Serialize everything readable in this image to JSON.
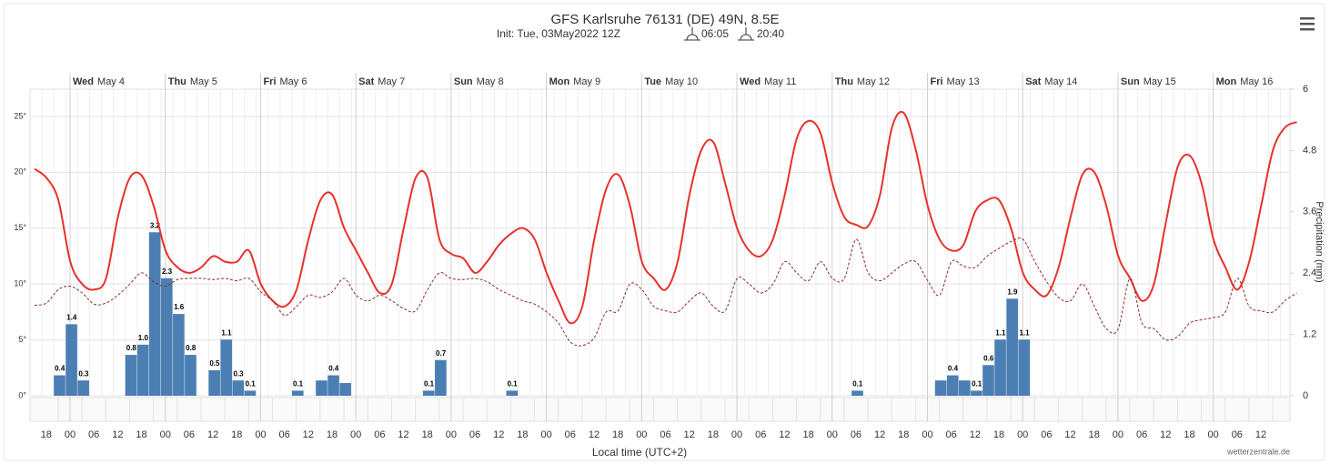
{
  "chart_data": {
    "type": "line",
    "title": "GFS Karlsruhe 76131 (DE) 49N, 8.5E",
    "subtitle": "Init: Tue, 03May2022 12Z",
    "sunrise": "06:05",
    "sunset": "20:40",
    "x_title": "Local time (UTC+2)",
    "credit": "wetterzentrale.de",
    "y2_label": "Precipitation (mm)",
    "grid": true,
    "ylim": [
      0,
      27.44
    ],
    "yticks": [
      {
        "value": 0,
        "label": "0°"
      },
      {
        "value": 5,
        "label": "5°"
      },
      {
        "value": 10,
        "label": "10°"
      },
      {
        "value": 15,
        "label": "15°"
      },
      {
        "value": 20,
        "label": "20°"
      },
      {
        "value": 25,
        "label": "25°"
      }
    ],
    "y2lim": [
      0,
      6
    ],
    "y2ticks": [
      0,
      1.2,
      2.4,
      3.6,
      4.8,
      6
    ],
    "day_labels": [
      {
        "weekday": "Wed",
        "date": "May 4"
      },
      {
        "weekday": "Thu",
        "date": "May 5"
      },
      {
        "weekday": "Fri",
        "date": "May 6"
      },
      {
        "weekday": "Sat",
        "date": "May 7"
      },
      {
        "weekday": "Sun",
        "date": "May 8"
      },
      {
        "weekday": "Mon",
        "date": "May 9"
      },
      {
        "weekday": "Tue",
        "date": "May 10"
      },
      {
        "weekday": "Wed",
        "date": "May 11"
      },
      {
        "weekday": "Thu",
        "date": "May 12"
      },
      {
        "weekday": "Fri",
        "date": "May 13"
      },
      {
        "weekday": "Sat",
        "date": "May 14"
      },
      {
        "weekday": "Sun",
        "date": "May 15"
      },
      {
        "weekday": "Mon",
        "date": "May 16"
      }
    ],
    "hour_labels": [
      "18",
      "00",
      "06",
      "12",
      "18",
      "00",
      "06",
      "12",
      "18",
      "00",
      "06",
      "12",
      "18",
      "00",
      "06",
      "12",
      "18",
      "00",
      "06",
      "12",
      "18",
      "00",
      "06",
      "12",
      "18",
      "00",
      "06",
      "12",
      "18",
      "00",
      "06",
      "12",
      "18",
      "00",
      "06",
      "12",
      "18",
      "00",
      "06",
      "12",
      "18",
      "00",
      "06",
      "12",
      "18",
      "00",
      "06",
      "12",
      "18",
      "00",
      "06",
      "12"
    ],
    "series": [
      {
        "type": "line",
        "color": "#e8312b",
        "values": [
          20.3,
          19.5,
          17.5,
          12,
          10,
          9.5,
          10.5,
          16,
          19.5,
          19.7,
          17,
          13,
          11.5,
          11,
          11.5,
          12.5,
          12,
          12,
          13,
          10,
          8.5,
          8,
          9.5,
          14,
          17.5,
          18,
          15,
          13,
          11,
          9.2,
          10,
          15,
          19.5,
          19.5,
          14,
          12.7,
          12.3,
          11,
          12,
          13.5,
          14.5,
          15,
          14,
          11,
          8.5,
          6.5,
          8,
          14,
          18.5,
          19.8,
          17,
          12,
          10.5,
          9.5,
          12,
          18,
          22,
          22.7,
          19,
          15,
          13,
          12.5,
          14,
          18,
          23,
          24.6,
          23.5,
          19,
          16,
          15.3,
          15.2,
          18,
          24,
          25.3,
          22,
          17,
          14,
          13,
          13.5,
          16.5,
          17.5,
          17.5,
          15,
          11,
          9.5,
          9,
          11.5,
          16,
          19.8,
          20,
          17,
          12.5,
          10.5,
          8.5,
          10,
          15.5,
          20.5,
          21.5,
          19,
          14,
          11.5,
          9.5,
          12,
          17,
          22,
          24,
          24.5
        ]
      },
      {
        "type": "line",
        "color": "#8f2b2b",
        "dash": true,
        "values": [
          8.1,
          8.3,
          9.5,
          9.8,
          9.2,
          8.2,
          8.3,
          9,
          10,
          11,
          10.2,
          9.8,
          10.4,
          10.5,
          10.5,
          10.4,
          10.5,
          10.3,
          10.5,
          9.3,
          8.5,
          7.2,
          8,
          9,
          8.8,
          9.3,
          10.5,
          9,
          8.5,
          9,
          8.5,
          7.8,
          7.6,
          9.5,
          11,
          10.5,
          10.4,
          10.5,
          10.2,
          9.5,
          9,
          8.5,
          8.2,
          7.5,
          6.5,
          4.8,
          4.5,
          5.2,
          7.5,
          7.6,
          10,
          9.5,
          8,
          7.6,
          7.5,
          8.5,
          9.2,
          8,
          7.6,
          10.5,
          10,
          9.2,
          10,
          12,
          11,
          10.3,
          12,
          10.5,
          10.5,
          14,
          11,
          10.3,
          11,
          11.8,
          12,
          10.3,
          9,
          12,
          11.6,
          11.5,
          12.5,
          13.2,
          13.8,
          14,
          12,
          10.2,
          8.8,
          8.5,
          10,
          8,
          6,
          6,
          10.5,
          6.5,
          6,
          5,
          5.3,
          6.5,
          6.8,
          7,
          7.5,
          10.5,
          8,
          7.6,
          7.5,
          8.5,
          9.2
        ]
      },
      {
        "type": "bar",
        "axis": "y2",
        "color": "#4b7fb4",
        "values": [
          0,
          0,
          0.4,
          1.4,
          0.3,
          0,
          0,
          0,
          0.8,
          1.0,
          3.2,
          2.3,
          1.6,
          0.8,
          0,
          0.5,
          1.1,
          0.3,
          0.1,
          0,
          0,
          0,
          0.1,
          0,
          0.3,
          0.4,
          0.25,
          0,
          0,
          0,
          0,
          0,
          0,
          0.1,
          0.7,
          0,
          0,
          0,
          0,
          0,
          0.1,
          0,
          0,
          0,
          0,
          0,
          0,
          0,
          0,
          0,
          0,
          0,
          0,
          0,
          0,
          0,
          0,
          0,
          0,
          0,
          0,
          0,
          0,
          0,
          0,
          0,
          0,
          0,
          0,
          0.1,
          0,
          0,
          0,
          0,
          0,
          0,
          0.3,
          0.4,
          0.3,
          0.1,
          0.6,
          1.1,
          1.9,
          1.1,
          0,
          0,
          0,
          0,
          0,
          0,
          0,
          0,
          0,
          0,
          0,
          0,
          0,
          0,
          0,
          0,
          0,
          0,
          0,
          0,
          0,
          0,
          0
        ],
        "value_labels": [
          null,
          null,
          "0.4",
          "1.4",
          "0.3",
          null,
          null,
          null,
          "0.8",
          "1.0",
          "3.2",
          "2.3",
          "1.6",
          "0.8",
          null,
          "0.5",
          "1.1",
          "0.3",
          "0.1",
          null,
          null,
          null,
          "0.1",
          null,
          null,
          "0.4",
          null,
          null,
          null,
          null,
          null,
          null,
          null,
          "0.1",
          "0.7",
          null,
          null,
          null,
          null,
          null,
          "0.1",
          null,
          null,
          null,
          null,
          null,
          null,
          null,
          null,
          null,
          null,
          null,
          null,
          null,
          null,
          null,
          null,
          null,
          null,
          null,
          null,
          null,
          null,
          null,
          null,
          null,
          null,
          null,
          null,
          "0.1",
          null,
          null,
          null,
          null,
          null,
          null,
          null,
          "0.4",
          null,
          "0.1",
          "0.6",
          "1.1",
          "1.9",
          "1.1",
          null,
          null,
          null,
          null,
          null,
          null,
          null,
          null,
          null,
          null,
          null,
          null,
          null,
          null,
          null,
          null,
          null,
          null,
          null,
          null,
          null,
          null,
          null
        ]
      }
    ]
  }
}
